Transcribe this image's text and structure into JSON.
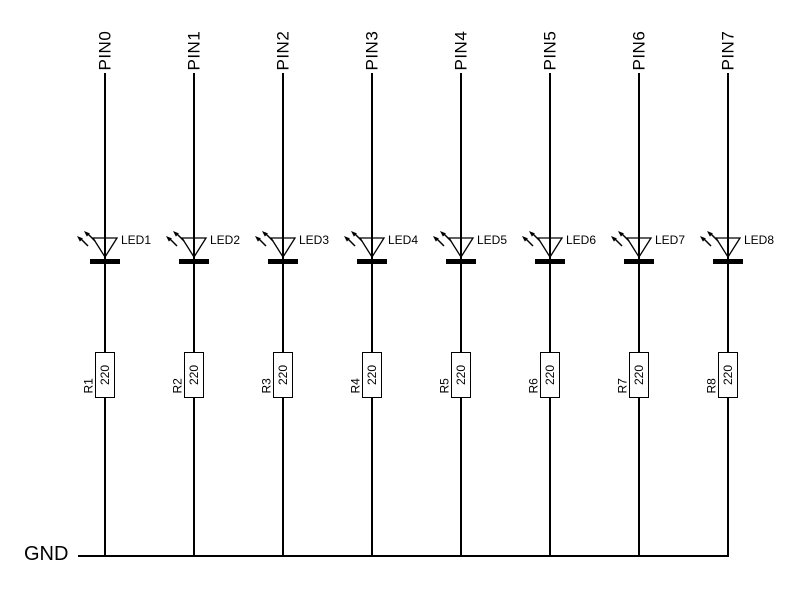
{
  "diagram": {
    "gnd_label": "GND",
    "resistor_unit_note": "220",
    "colors": {
      "line": "#000000",
      "background": "#ffffff",
      "text": "#000000"
    }
  },
  "columns": [
    {
      "pin": "PIN0",
      "led": "LED1",
      "ref": "R1",
      "value": "220"
    },
    {
      "pin": "PIN1",
      "led": "LED2",
      "ref": "R2",
      "value": "220"
    },
    {
      "pin": "PIN2",
      "led": "LED3",
      "ref": "R3",
      "value": "220"
    },
    {
      "pin": "PIN3",
      "led": "LED4",
      "ref": "R4",
      "value": "220"
    },
    {
      "pin": "PIN4",
      "led": "LED5",
      "ref": "R5",
      "value": "220"
    },
    {
      "pin": "PIN5",
      "led": "LED6",
      "ref": "R6",
      "value": "220"
    },
    {
      "pin": "PIN6",
      "led": "LED7",
      "ref": "R7",
      "value": "220"
    },
    {
      "pin": "PIN7",
      "led": "LED8",
      "ref": "R8",
      "value": "220"
    }
  ]
}
